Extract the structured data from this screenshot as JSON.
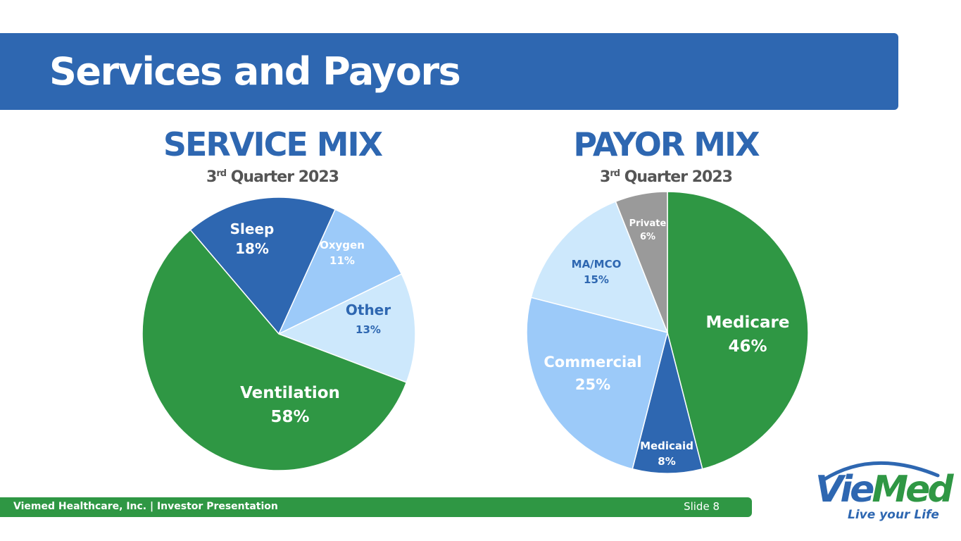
{
  "title": "Services and Payors",
  "footer": {
    "left": "Viemed Healthcare, Inc. | Investor Presentation",
    "right": "Slide 8"
  },
  "logo": {
    "word_a": "Vie",
    "word_b": "Med",
    "tagline": "Live your Life"
  },
  "colors": {
    "brand_blue": "#2e67b1",
    "brand_green": "#2f9744",
    "light_blue": "#9ccaf9",
    "pale_blue": "#cde8fc",
    "gray": "#9a9a9a"
  },
  "chart_data": [
    {
      "type": "pie",
      "title": "SERVICE MIX",
      "subtitle_prefix": "3",
      "subtitle_sup": "rd",
      "subtitle_suffix": " Quarter 2023",
      "start_angle_deg": -40.4,
      "slices": [
        {
          "label": "Sleep",
          "value": "18%",
          "pct": 18,
          "color": "#2e67b1",
          "text_color": "#ffffff"
        },
        {
          "label": "Oxygen",
          "value": "11%",
          "pct": 11,
          "color": "#9ccaf9",
          "text_color": "#ffffff"
        },
        {
          "label": "Other",
          "value": "13%",
          "pct": 13,
          "color": "#cde8fc",
          "text_color": "#2e67b1"
        },
        {
          "label": "Ventilation",
          "value": "58%",
          "pct": 58,
          "color": "#2f9744",
          "text_color": "#ffffff"
        }
      ]
    },
    {
      "type": "pie",
      "title": "PAYOR MIX",
      "subtitle_prefix": "3",
      "subtitle_sup": "rd",
      "subtitle_suffix": " Quarter 2023",
      "start_angle_deg": 0,
      "slices": [
        {
          "label": "Medicare",
          "value": "46%",
          "pct": 46,
          "color": "#2f9744",
          "text_color": "#ffffff"
        },
        {
          "label": "Medicaid",
          "value": "8%",
          "pct": 8,
          "color": "#2e67b1",
          "text_color": "#ffffff"
        },
        {
          "label": "Commercial",
          "value": "25%",
          "pct": 25,
          "color": "#9ccaf9",
          "text_color": "#ffffff"
        },
        {
          "label": "MA/MCO",
          "value": "15%",
          "pct": 15,
          "color": "#cde8fc",
          "text_color": "#2e67b1"
        },
        {
          "label": "Private",
          "value": "6%",
          "pct": 6,
          "color": "#9a9a9a",
          "text_color": "#ffffff"
        }
      ]
    }
  ]
}
